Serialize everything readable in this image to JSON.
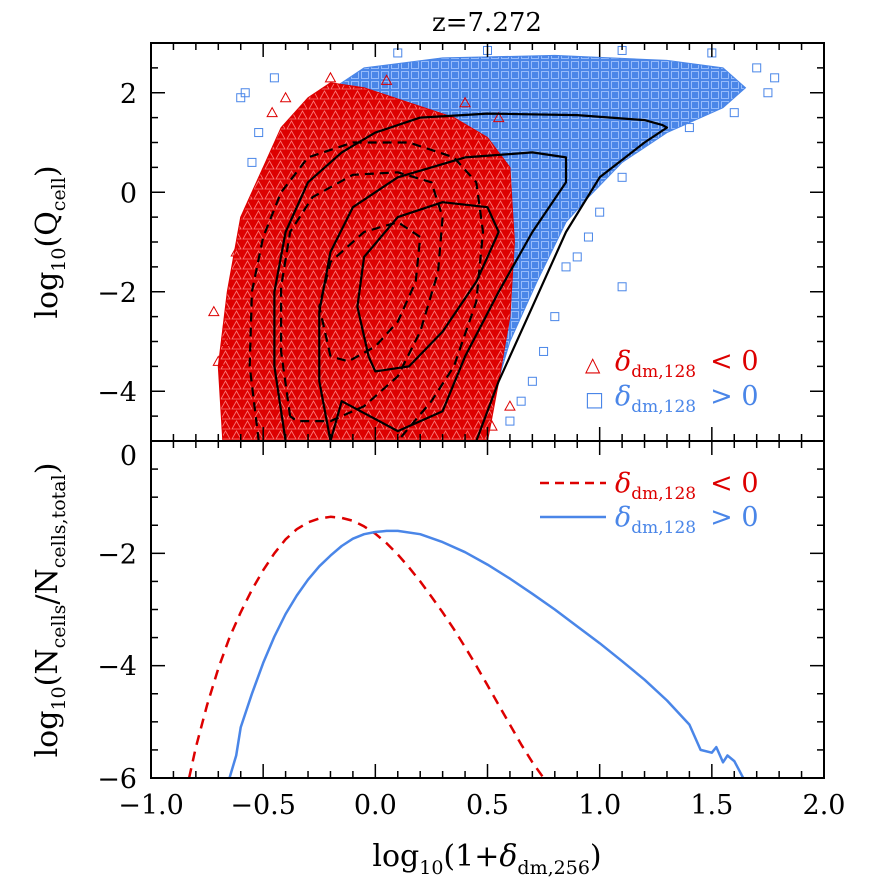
{
  "chart_data": [
    {
      "type": "scatter",
      "title": "z=7.272",
      "xlabel": "log10(1+δdm,256)",
      "ylabel": "log10(Qcell)",
      "xlim": [
        -1.0,
        2.0
      ],
      "ylim": [
        -5.0,
        3.0
      ],
      "xticks": [
        -1.0,
        -0.5,
        0.0,
        0.5,
        1.0,
        1.5,
        2.0
      ],
      "xtick_labels": [
        "−1.0",
        "−0.5",
        "0.0",
        "0.5",
        "1.0",
        "1.5",
        "2.0"
      ],
      "yticks": [
        -4,
        -2,
        0,
        2
      ],
      "ytick_labels": [
        "−4",
        "−2",
        "0",
        "2"
      ],
      "series": [
        {
          "name": "δdm,128 < 0",
          "marker": "triangle",
          "color": "#dd0000",
          "region": [
            [
              -0.68,
              -5.0
            ],
            [
              -0.7,
              -3.5
            ],
            [
              -0.66,
              -2.0
            ],
            [
              -0.6,
              -0.5
            ],
            [
              -0.5,
              0.5
            ],
            [
              -0.42,
              1.3
            ],
            [
              -0.3,
              1.9
            ],
            [
              -0.2,
              2.2
            ],
            [
              -0.05,
              2.1
            ],
            [
              0.15,
              1.8
            ],
            [
              0.35,
              1.5
            ],
            [
              0.5,
              1.1
            ],
            [
              0.6,
              0.5
            ],
            [
              0.62,
              -1.0
            ],
            [
              0.6,
              -2.5
            ],
            [
              0.55,
              -3.8
            ],
            [
              0.5,
              -5.0
            ]
          ],
          "outlier_points": [
            [
              -0.72,
              -2.4
            ],
            [
              -0.7,
              -3.4
            ],
            [
              -0.66,
              -3.0
            ],
            [
              -0.62,
              -1.2
            ],
            [
              -0.46,
              1.6
            ],
            [
              -0.4,
              1.9
            ],
            [
              -0.2,
              2.3
            ],
            [
              0.05,
              2.25
            ],
            [
              0.4,
              1.8
            ],
            [
              0.55,
              1.5
            ],
            [
              0.6,
              -4.3
            ],
            [
              0.52,
              -4.7
            ]
          ]
        },
        {
          "name": "δdm,128 > 0",
          "marker": "square",
          "color": "#4a86e8",
          "region": [
            [
              -0.4,
              0.9
            ],
            [
              -0.25,
              1.9
            ],
            [
              -0.05,
              2.5
            ],
            [
              0.3,
              2.7
            ],
            [
              0.8,
              2.75
            ],
            [
              1.3,
              2.65
            ],
            [
              1.55,
              2.5
            ],
            [
              1.65,
              2.1
            ],
            [
              1.55,
              1.7
            ],
            [
              1.3,
              1.2
            ],
            [
              1.1,
              0.6
            ],
            [
              0.95,
              -0.1
            ],
            [
              0.85,
              -0.6
            ],
            [
              0.72,
              -1.8
            ],
            [
              0.6,
              -3.0
            ],
            [
              0.52,
              -4.2
            ],
            [
              0.48,
              -5.0
            ],
            [
              0.3,
              -5.0
            ],
            [
              0.3,
              0.0
            ]
          ],
          "outlier_points": [
            [
              -0.6,
              1.9
            ],
            [
              -0.52,
              1.2
            ],
            [
              -0.55,
              0.6
            ],
            [
              -0.58,
              2.0
            ],
            [
              -0.45,
              2.3
            ],
            [
              0.1,
              2.8
            ],
            [
              0.5,
              2.85
            ],
            [
              1.1,
              2.85
            ],
            [
              1.5,
              2.8
            ],
            [
              1.7,
              2.5
            ],
            [
              1.78,
              2.3
            ],
            [
              1.75,
              2.0
            ],
            [
              1.6,
              1.6
            ],
            [
              1.4,
              1.3
            ],
            [
              1.1,
              0.3
            ],
            [
              1.0,
              -0.4
            ],
            [
              0.95,
              -0.9
            ],
            [
              0.9,
              -1.3
            ],
            [
              0.85,
              -1.5
            ],
            [
              1.1,
              -1.9
            ],
            [
              0.8,
              -2.5
            ],
            [
              0.75,
              -3.2
            ],
            [
              0.7,
              -3.8
            ],
            [
              0.65,
              -4.2
            ],
            [
              0.6,
              -4.6
            ]
          ]
        }
      ],
      "contours": [
        {
          "style": "solid",
          "points": [
            [
              -0.4,
              -5.0
            ],
            [
              -0.45,
              -3.5
            ],
            [
              -0.45,
              -2.0
            ],
            [
              -0.4,
              -0.8
            ],
            [
              -0.3,
              0.2
            ],
            [
              -0.15,
              0.8
            ],
            [
              0.0,
              1.2
            ],
            [
              0.2,
              1.5
            ],
            [
              0.5,
              1.58
            ],
            [
              0.9,
              1.55
            ],
            [
              1.2,
              1.45
            ],
            [
              1.28,
              1.35
            ],
            [
              1.3,
              1.3
            ],
            [
              1.2,
              1.0
            ],
            [
              1.0,
              0.3
            ],
            [
              0.85,
              -0.8
            ],
            [
              0.7,
              -2.3
            ],
            [
              0.55,
              -3.8
            ],
            [
              0.45,
              -5.0
            ]
          ]
        },
        {
          "style": "solid",
          "points": [
            [
              -0.2,
              -5.0
            ],
            [
              -0.25,
              -3.8
            ],
            [
              -0.25,
              -2.4
            ],
            [
              -0.2,
              -1.2
            ],
            [
              -0.1,
              -0.3
            ],
            [
              0.1,
              0.3
            ],
            [
              0.4,
              0.7
            ],
            [
              0.7,
              0.8
            ],
            [
              0.85,
              0.7
            ],
            [
              0.85,
              0.2
            ],
            [
              0.7,
              -0.8
            ],
            [
              0.55,
              -2.0
            ],
            [
              0.4,
              -3.3
            ],
            [
              0.3,
              -4.4
            ],
            [
              0.1,
              -4.8
            ],
            [
              -0.15,
              -4.2
            ],
            [
              -0.2,
              -5.0
            ]
          ]
        },
        {
          "style": "solid",
          "points": [
            [
              -0.03,
              -3.3
            ],
            [
              -0.08,
              -2.3
            ],
            [
              -0.05,
              -1.3
            ],
            [
              0.1,
              -0.5
            ],
            [
              0.3,
              -0.2
            ],
            [
              0.5,
              -0.3
            ],
            [
              0.55,
              -0.8
            ],
            [
              0.45,
              -1.8
            ],
            [
              0.3,
              -2.8
            ],
            [
              0.15,
              -3.5
            ],
            [
              0.0,
              -3.6
            ],
            [
              -0.03,
              -3.3
            ]
          ]
        },
        {
          "style": "dashed",
          "points": [
            [
              -0.52,
              -5.0
            ],
            [
              -0.56,
              -3.5
            ],
            [
              -0.55,
              -2.0
            ],
            [
              -0.5,
              -0.9
            ],
            [
              -0.42,
              0.0
            ],
            [
              -0.3,
              0.7
            ],
            [
              -0.1,
              1.0
            ],
            [
              0.15,
              1.0
            ],
            [
              0.35,
              0.7
            ],
            [
              0.45,
              0.2
            ],
            [
              0.48,
              -0.8
            ],
            [
              0.45,
              -2.2
            ],
            [
              0.35,
              -3.5
            ],
            [
              0.25,
              -4.2
            ],
            [
              0.1,
              -5.0
            ]
          ]
        },
        {
          "style": "dashed",
          "points": [
            [
              -0.38,
              -4.5
            ],
            [
              -0.42,
              -3.2
            ],
            [
              -0.42,
              -1.9
            ],
            [
              -0.38,
              -0.8
            ],
            [
              -0.28,
              -0.1
            ],
            [
              -0.1,
              0.35
            ],
            [
              0.1,
              0.4
            ],
            [
              0.25,
              0.2
            ],
            [
              0.3,
              -0.5
            ],
            [
              0.28,
              -1.6
            ],
            [
              0.2,
              -2.8
            ],
            [
              0.1,
              -3.7
            ],
            [
              -0.05,
              -4.3
            ],
            [
              -0.2,
              -4.6
            ],
            [
              -0.35,
              -4.6
            ],
            [
              -0.38,
              -4.5
            ]
          ]
        },
        {
          "style": "dashed",
          "points": [
            [
              -0.2,
              -3.3
            ],
            [
              -0.25,
              -2.3
            ],
            [
              -0.2,
              -1.4
            ],
            [
              -0.05,
              -0.8
            ],
            [
              0.1,
              -0.6
            ],
            [
              0.2,
              -0.9
            ],
            [
              0.18,
              -1.8
            ],
            [
              0.1,
              -2.6
            ],
            [
              0.0,
              -3.1
            ],
            [
              -0.12,
              -3.4
            ],
            [
              -0.2,
              -3.3
            ]
          ]
        }
      ],
      "legend": {
        "position": "bottom-right",
        "entries": [
          {
            "marker": "△",
            "symbol": "δ",
            "subscript": "dm,128",
            "relation": "< 0",
            "color": "#dd0000"
          },
          {
            "marker": "□",
            "symbol": "δ",
            "subscript": "dm,128",
            "relation": "> 0",
            "color": "#4a86e8"
          }
        ]
      }
    },
    {
      "type": "line",
      "xlabel": "log10(1+δdm,256)",
      "ylabel": "log10(Ncells/Ncells,total)",
      "xlim": [
        -1.0,
        2.0
      ],
      "ylim": [
        -6.0,
        0.0
      ],
      "yticks": [
        -6,
        -4,
        -2,
        0
      ],
      "ytick_labels": [
        "−6",
        "−4",
        "−2",
        "0"
      ],
      "series": [
        {
          "name": "δdm,128 < 0",
          "style": "dashed",
          "color": "#dd0000",
          "x": [
            -0.83,
            -0.8,
            -0.75,
            -0.7,
            -0.65,
            -0.6,
            -0.55,
            -0.5,
            -0.45,
            -0.4,
            -0.35,
            -0.3,
            -0.25,
            -0.2,
            -0.15,
            -0.1,
            -0.05,
            0.0,
            0.05,
            0.1,
            0.15,
            0.2,
            0.25,
            0.3,
            0.35,
            0.4,
            0.45,
            0.5,
            0.55,
            0.6,
            0.65,
            0.7,
            0.75
          ],
          "y": [
            -6.0,
            -5.45,
            -4.7,
            -4.05,
            -3.5,
            -3.05,
            -2.65,
            -2.3,
            -2.0,
            -1.75,
            -1.57,
            -1.45,
            -1.38,
            -1.35,
            -1.37,
            -1.42,
            -1.52,
            -1.65,
            -1.82,
            -2.02,
            -2.25,
            -2.5,
            -2.77,
            -3.05,
            -3.35,
            -3.67,
            -4.0,
            -4.35,
            -4.7,
            -5.05,
            -5.4,
            -5.72,
            -6.0
          ]
        },
        {
          "name": "δdm,128 > 0",
          "style": "solid",
          "color": "#4a86e8",
          "x": [
            -0.65,
            -0.62,
            -0.6,
            -0.55,
            -0.5,
            -0.45,
            -0.4,
            -0.35,
            -0.3,
            -0.25,
            -0.2,
            -0.15,
            -0.1,
            -0.05,
            0.0,
            0.05,
            0.1,
            0.2,
            0.3,
            0.4,
            0.5,
            0.6,
            0.7,
            0.8,
            0.9,
            1.0,
            1.1,
            1.2,
            1.3,
            1.4,
            1.45,
            1.5,
            1.52,
            1.55,
            1.57,
            1.6,
            1.62,
            1.64
          ],
          "y": [
            -6.0,
            -5.6,
            -5.1,
            -4.5,
            -3.95,
            -3.48,
            -3.08,
            -2.75,
            -2.47,
            -2.23,
            -2.04,
            -1.87,
            -1.74,
            -1.66,
            -1.62,
            -1.6,
            -1.6,
            -1.66,
            -1.8,
            -1.98,
            -2.2,
            -2.45,
            -2.72,
            -3.0,
            -3.3,
            -3.6,
            -3.92,
            -4.25,
            -4.62,
            -5.05,
            -5.5,
            -5.55,
            -5.45,
            -5.72,
            -5.6,
            -5.7,
            -5.85,
            -6.0
          ]
        }
      ],
      "legend": {
        "position": "top-right",
        "entries": [
          {
            "line": "dashed",
            "symbol": "δ",
            "subscript": "dm,128",
            "relation": "< 0",
            "color": "#dd0000"
          },
          {
            "line": "solid",
            "symbol": "δ",
            "subscript": "dm,128",
            "relation": "> 0",
            "color": "#4a86e8"
          }
        ]
      }
    }
  ],
  "axis_text": {
    "top_ylabel_base": "log",
    "top_ylabel_sub": "10",
    "top_ylabel_open": "(Q",
    "top_ylabel_q_sub": "cell",
    "top_ylabel_close": ")",
    "bot_ylabel_base": "log",
    "bot_ylabel_sub": "10",
    "bot_ylabel_open": "(N",
    "bot_ylabel_n1_sub": "cells",
    "bot_ylabel_mid": "/N",
    "bot_ylabel_n2_sub": "cells,total",
    "bot_ylabel_close": ")",
    "xlabel_base": "log",
    "xlabel_sub": "10",
    "xlabel_open": "(1+",
    "xlabel_delta": "δ",
    "xlabel_delta_sub": "dm,256",
    "xlabel_close": ")"
  }
}
